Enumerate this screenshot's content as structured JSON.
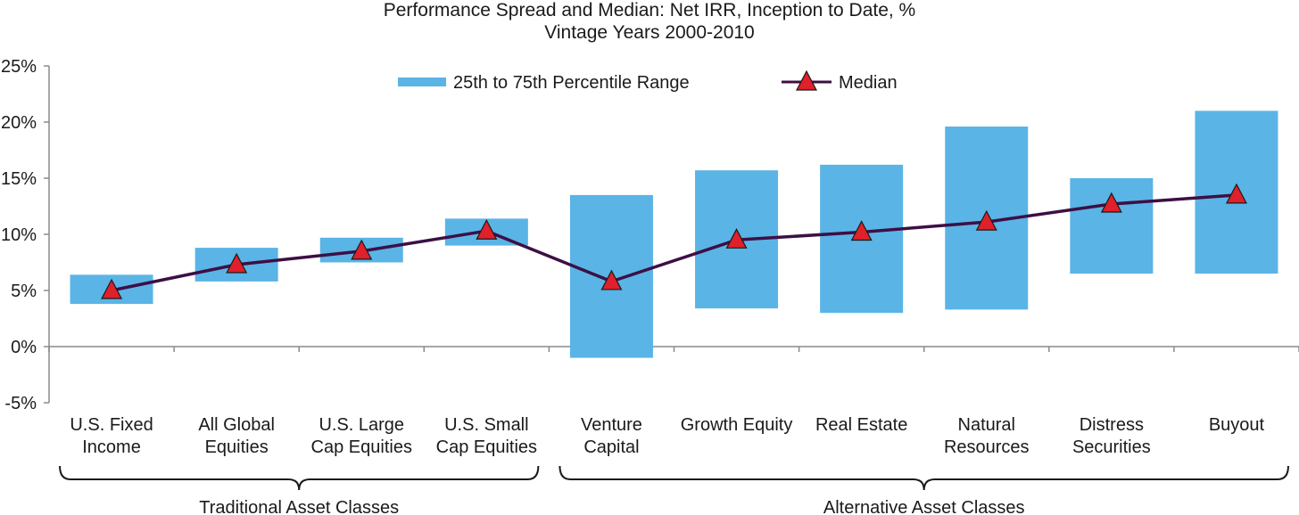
{
  "chart_data": {
    "type": "bar",
    "title": "Performance Spread and Median: Net IRR, Inception to Date, %",
    "subtitle": "Vintage Years 2000-2010",
    "xlabel": "",
    "ylabel": "",
    "ylim": [
      -5,
      25
    ],
    "yticks": [
      -5,
      0,
      5,
      10,
      15,
      20,
      25
    ],
    "ytick_labels": [
      "-5%",
      "0%",
      "5%",
      "10%",
      "15%",
      "20%",
      "25%"
    ],
    "grid": false,
    "legend_position": "top",
    "categories": [
      [
        "U.S. Fixed",
        "Income"
      ],
      [
        "All Global",
        "Equities"
      ],
      [
        "U.S. Large",
        "Cap Equities"
      ],
      [
        "U.S. Small",
        "Cap Equities"
      ],
      [
        "Venture",
        "Capital"
      ],
      [
        "Growth Equity"
      ],
      [
        "Real Estate"
      ],
      [
        "Natural",
        "Resources"
      ],
      [
        "Distress",
        "Securities"
      ],
      [
        "Buyout"
      ]
    ],
    "series": [
      {
        "name": "25th to 75th Percentile Range",
        "kind": "floating-bar",
        "color": "#5ab4e6",
        "low": [
          3.8,
          5.8,
          7.5,
          9.0,
          -1.0,
          3.4,
          3.0,
          3.3,
          6.5,
          6.5
        ],
        "high": [
          6.4,
          8.8,
          9.7,
          11.4,
          13.5,
          15.7,
          16.2,
          19.6,
          15.0,
          21.0
        ]
      },
      {
        "name": "Median",
        "kind": "line",
        "line_color": "#3d0f45",
        "marker": "triangle",
        "marker_color": "#e0202a",
        "values": [
          5.0,
          7.3,
          8.5,
          10.3,
          5.8,
          9.5,
          10.2,
          11.1,
          12.7,
          13.5
        ]
      }
    ],
    "groups": [
      {
        "label": "Traditional Asset Classes",
        "from": 0,
        "to": 3
      },
      {
        "label": "Alternative Asset Classes",
        "from": 4,
        "to": 9
      }
    ]
  }
}
